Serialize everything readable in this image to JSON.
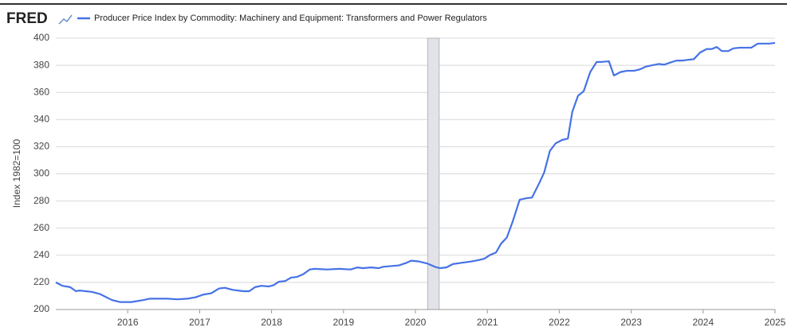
{
  "logo": "FRED",
  "chart_data": {
    "type": "line",
    "ylabel": "Index 1982=100",
    "xlim": [
      2015,
      2025
    ],
    "xticks": [
      2016,
      2017,
      2018,
      2019,
      2020,
      2021,
      2022,
      2023,
      2024,
      2025
    ],
    "ylim": [
      200,
      400
    ],
    "yticks": [
      200,
      220,
      240,
      260,
      280,
      300,
      320,
      340,
      360,
      380,
      400
    ],
    "grid": true,
    "recession": [
      2020.17,
      2020.33
    ],
    "x": [
      2015.0,
      2015.09,
      2015.2,
      2015.28,
      2015.33,
      2015.5,
      2015.61,
      2015.78,
      2015.89,
      2016.05,
      2016.22,
      2016.31,
      2016.55,
      2016.69,
      2016.83,
      2016.94,
      2017.05,
      2017.16,
      2017.27,
      2017.35,
      2017.46,
      2017.61,
      2017.69,
      2017.77,
      2017.86,
      2017.96,
      2018.03,
      2018.1,
      2018.19,
      2018.27,
      2018.35,
      2018.44,
      2018.53,
      2018.6,
      2018.77,
      2018.94,
      2019.1,
      2019.19,
      2019.27,
      2019.38,
      2019.49,
      2019.55,
      2019.66,
      2019.77,
      2019.88,
      2019.94,
      2020.04,
      2020.16,
      2020.27,
      2020.34,
      2020.43,
      2020.52,
      2020.65,
      2020.79,
      2020.88,
      2020.96,
      2021.03,
      2021.12,
      2021.19,
      2021.27,
      2021.35,
      2021.45,
      2021.54,
      2021.62,
      2021.72,
      2021.79,
      2021.87,
      2021.95,
      2022.04,
      2022.12,
      2022.18,
      2022.26,
      2022.34,
      2022.43,
      2022.52,
      2022.59,
      2022.69,
      2022.76,
      2022.85,
      2022.94,
      2023.04,
      2023.12,
      2023.2,
      2023.29,
      2023.38,
      2023.46,
      2023.54,
      2023.63,
      2023.71,
      2023.78,
      2023.87,
      2023.96,
      2024.05,
      2024.12,
      2024.19,
      2024.26,
      2024.35,
      2024.42,
      2024.51,
      2024.67,
      2024.76,
      2024.92,
      2025.0
    ],
    "series": [
      {
        "name": "Producer Price Index by Commodity: Machinery and Equipment: Transformers and Power Regulators",
        "color": "#4572e6",
        "values": [
          220,
          217.5,
          216.5,
          213.5,
          214,
          213,
          211.5,
          207,
          205.5,
          205.5,
          207,
          208,
          208,
          207.5,
          208,
          209,
          211,
          212,
          215.5,
          216,
          214.5,
          213.5,
          213.5,
          216.5,
          217.5,
          217,
          218,
          220.5,
          221,
          223.5,
          224,
          226,
          229.5,
          230,
          229.5,
          230,
          229.5,
          231,
          230.5,
          231,
          230.5,
          231.5,
          232,
          232.5,
          234.5,
          236,
          235.5,
          234,
          231.5,
          230.5,
          231,
          233.5,
          234.5,
          235.5,
          236.5,
          237.5,
          240,
          242,
          248.5,
          253,
          264.5,
          281,
          282,
          282.5,
          293,
          301,
          317,
          322.5,
          325,
          326,
          345.5,
          357.5,
          361,
          375,
          382.5,
          382.5,
          383,
          372.5,
          375,
          376,
          376,
          377,
          379,
          380,
          381,
          380.5,
          382,
          383.5,
          383.5,
          384,
          384.5,
          389.5,
          392,
          392,
          393.5,
          390.5,
          390.5,
          392.5,
          393,
          393,
          396,
          396,
          396.5
        ]
      }
    ]
  }
}
